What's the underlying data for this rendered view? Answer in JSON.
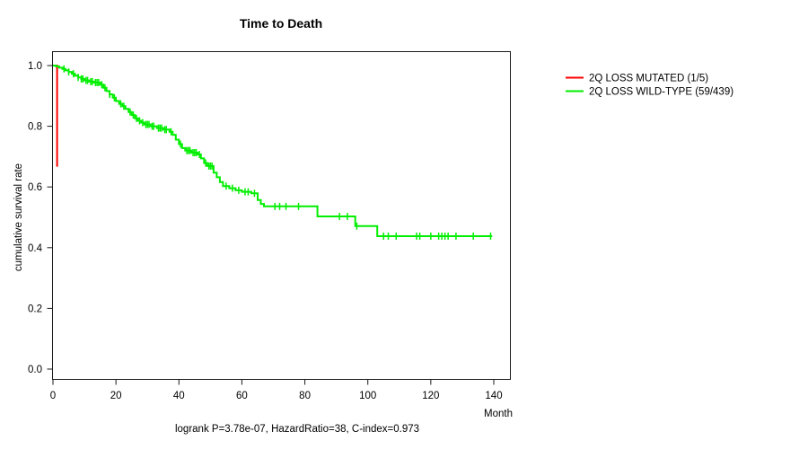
{
  "title": "Time to Death",
  "axes": {
    "y_label": "cumulative survival rate",
    "x_label": "Month",
    "x_ticks": [
      "0",
      "20",
      "40",
      "60",
      "80",
      "100",
      "120",
      "140"
    ],
    "y_ticks": [
      "1.0",
      "0.8",
      "0.6",
      "0.4",
      "0.2",
      "0.0"
    ]
  },
  "legend": [
    {
      "label": "2Q LOSS MUTATED (1/5)",
      "color": "#ff0000",
      "slug": "mutated"
    },
    {
      "label": "2Q LOSS WILD-TYPE (59/439)",
      "color": "#00ee00",
      "slug": "wild-type"
    }
  ],
  "footer": "logrank P=3.78e-07, HazardRatio=38, C-index=0.973",
  "chart_data": {
    "type": "line",
    "subtype": "kaplan-meier-step",
    "title": "Time to Death",
    "xlabel": "Month",
    "ylabel": "cumulative survival rate",
    "xlim": [
      0,
      140
    ],
    "ylim": [
      0.0,
      1.0
    ],
    "grid": false,
    "legend_position": "right-outside",
    "x_tick_values": [
      0,
      20,
      40,
      60,
      80,
      100,
      120,
      140
    ],
    "y_tick_values": [
      1.0,
      0.8,
      0.6,
      0.4,
      0.2,
      0.0
    ],
    "annotation": "logrank P=3.78e-07, HazardRatio=38, C-index=0.973",
    "series": [
      {
        "name": "2Q LOSS MUTATED (1/5)",
        "slug": "mutated",
        "color": "#ff0000",
        "line_width": 2,
        "steps": [
          [
            0,
            1.0
          ],
          [
            1.3,
            0.667
          ]
        ],
        "end_time": 1.3,
        "censor_times": []
      },
      {
        "name": "2Q LOSS WILD-TYPE (59/439)",
        "slug": "wild-type",
        "color": "#00ee00",
        "line_width": 2,
        "steps": [
          [
            0,
            1.0
          ],
          [
            1,
            0.997
          ],
          [
            2,
            0.993
          ],
          [
            3,
            0.989
          ],
          [
            4,
            0.984
          ],
          [
            5,
            0.979
          ],
          [
            6,
            0.973
          ],
          [
            7,
            0.967
          ],
          [
            8,
            0.961
          ],
          [
            9,
            0.956
          ],
          [
            10,
            0.951
          ],
          [
            11.5,
            0.947
          ],
          [
            13,
            0.944
          ],
          [
            15,
            0.937
          ],
          [
            16,
            0.927
          ],
          [
            17,
            0.916
          ],
          [
            18,
            0.905
          ],
          [
            19,
            0.894
          ],
          [
            20,
            0.883
          ],
          [
            21,
            0.874
          ],
          [
            22,
            0.866
          ],
          [
            23,
            0.857
          ],
          [
            24,
            0.847
          ],
          [
            25,
            0.837
          ],
          [
            26,
            0.826
          ],
          [
            27,
            0.818
          ],
          [
            28,
            0.812
          ],
          [
            29,
            0.806
          ],
          [
            31,
            0.8
          ],
          [
            33,
            0.794
          ],
          [
            35,
            0.789
          ],
          [
            37,
            0.782
          ],
          [
            38,
            0.772
          ],
          [
            39,
            0.756
          ],
          [
            40,
            0.741
          ],
          [
            41,
            0.728
          ],
          [
            42,
            0.72
          ],
          [
            44,
            0.713
          ],
          [
            46,
            0.707
          ],
          [
            47,
            0.694
          ],
          [
            48,
            0.679
          ],
          [
            49,
            0.669
          ],
          [
            51,
            0.647
          ],
          [
            52,
            0.632
          ],
          [
            53,
            0.616
          ],
          [
            54,
            0.603
          ],
          [
            56,
            0.596
          ],
          [
            58,
            0.589
          ],
          [
            60,
            0.584
          ],
          [
            63,
            0.579
          ],
          [
            65,
            0.557
          ],
          [
            66,
            0.544
          ],
          [
            67,
            0.536
          ],
          [
            84,
            0.503
          ],
          [
            96,
            0.471
          ],
          [
            103,
            0.438
          ]
        ],
        "end_time": 139.5,
        "censor_times": [
          3.5,
          5,
          6.5,
          8,
          9,
          9.5,
          10.5,
          11,
          12,
          12.5,
          13.5,
          14,
          14.5,
          15.5,
          16.5,
          18,
          19.5,
          21.5,
          22.5,
          24.5,
          25.5,
          26.5,
          27.5,
          28.5,
          29.5,
          30,
          30.5,
          31.5,
          32,
          33.5,
          34,
          34.5,
          35.5,
          36,
          37.5,
          40.5,
          42.5,
          43,
          43.5,
          44.5,
          45,
          45.5,
          46.5,
          48.5,
          49.5,
          50,
          50.5,
          55,
          57,
          59,
          61,
          62,
          64,
          70.5,
          72,
          74,
          78,
          91,
          93.5,
          96.5,
          105,
          106.5,
          109,
          115.5,
          116.5,
          120,
          122.5,
          123.5,
          124.5,
          125.5,
          128,
          133.5,
          139
        ]
      }
    ]
  }
}
